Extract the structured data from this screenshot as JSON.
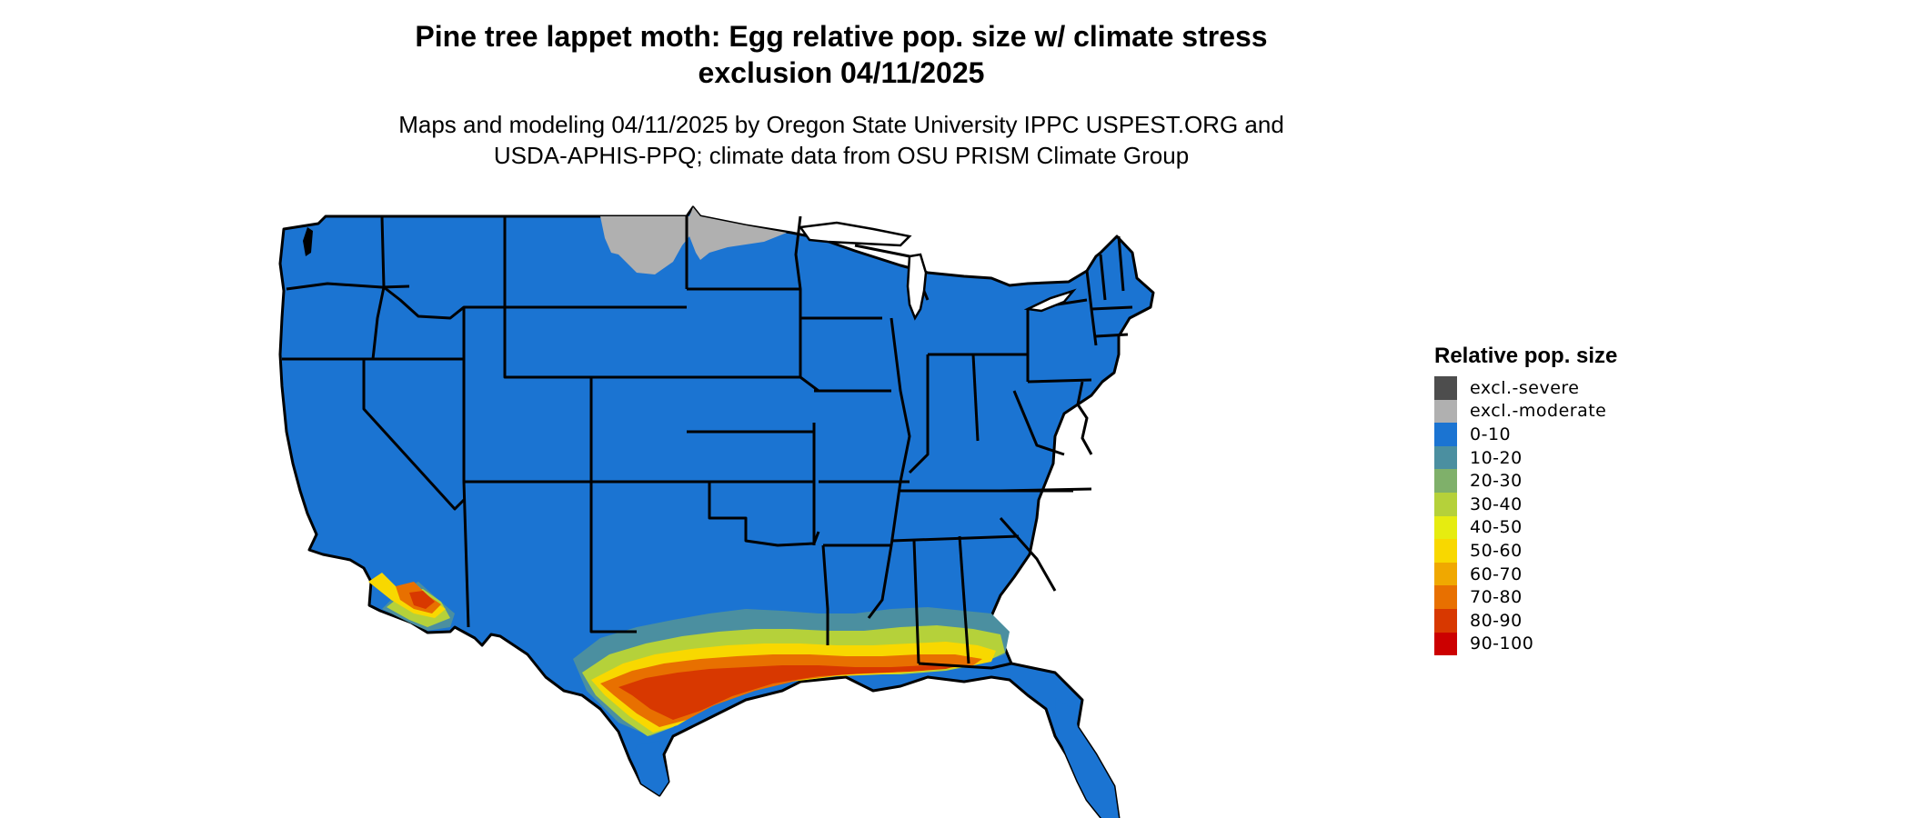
{
  "title_line1": "Pine tree lappet moth: Egg relative pop. size w/ climate stress",
  "title_line2": "exclusion 04/11/2025",
  "subtitle_line1": "Maps and modeling 04/11/2025 by Oregon State University IPPC USPEST.ORG and",
  "subtitle_line2": "USDA-APHIS-PPQ; climate data from OSU PRISM Climate Group",
  "legend": {
    "title": "Relative pop. size",
    "items": [
      {
        "label": "excl.-severe",
        "color": "#4d4d4d"
      },
      {
        "label": "excl.-moderate",
        "color": "#b0b0b0"
      },
      {
        "label": "0-10",
        "color": "#1b74d2"
      },
      {
        "label": "10-20",
        "color": "#4b8fa0"
      },
      {
        "label": "20-30",
        "color": "#7fb06a"
      },
      {
        "label": "30-40",
        "color": "#b5d13a"
      },
      {
        "label": "40-50",
        "color": "#e6ec10"
      },
      {
        "label": "50-60",
        "color": "#f8d800"
      },
      {
        "label": "60-70",
        "color": "#f0a800"
      },
      {
        "label": "70-80",
        "color": "#e87000"
      },
      {
        "label": "80-90",
        "color": "#d83800"
      },
      {
        "label": "90-100",
        "color": "#cc0000"
      }
    ]
  }
}
